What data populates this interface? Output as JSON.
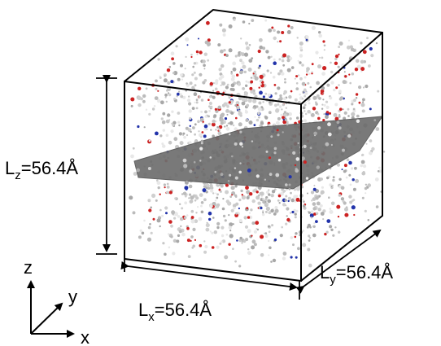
{
  "dimensions": {
    "lz": {
      "symbol": "L",
      "subscript": "z",
      "value": "=56.4Å"
    },
    "lx": {
      "symbol": "L",
      "subscript": "x",
      "value": "=56.4Å"
    },
    "ly": {
      "symbol": "L",
      "subscript": "y",
      "value": "=56.4Å"
    }
  },
  "axes": {
    "z": "z",
    "y": "y",
    "x": "x"
  }
}
